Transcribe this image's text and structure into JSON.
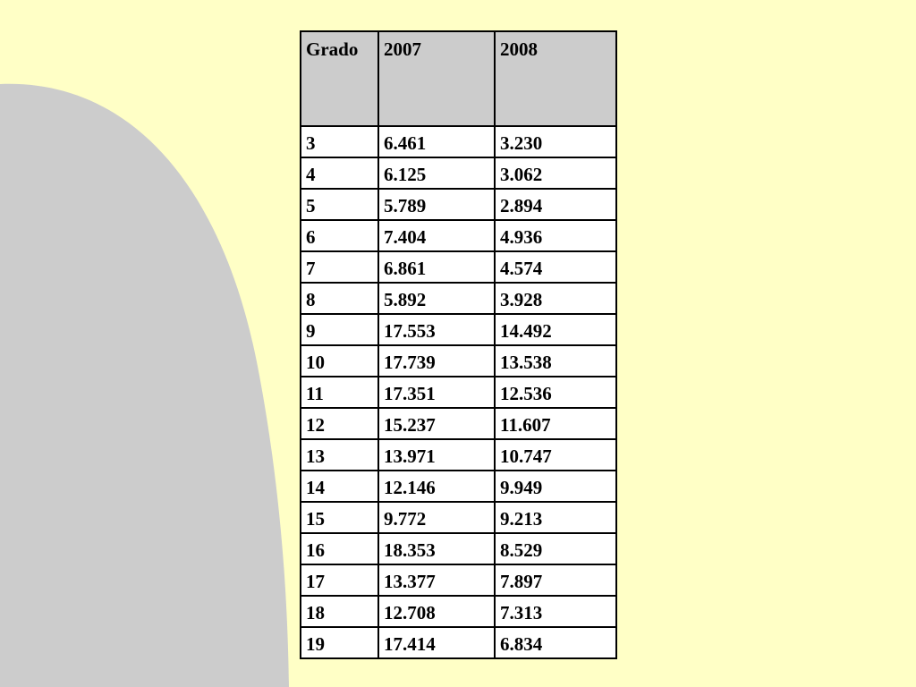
{
  "colors": {
    "background": "#ffffc6",
    "shape": "#cccccc",
    "header_fill": "#cccccc"
  },
  "table": {
    "headers": [
      "Grado",
      "2007",
      "2008"
    ],
    "rows": [
      [
        "3",
        "6.461",
        "3.230"
      ],
      [
        "4",
        "6.125",
        "3.062"
      ],
      [
        "5",
        "5.789",
        "2.894"
      ],
      [
        "6",
        "7.404",
        "4.936"
      ],
      [
        "7",
        "6.861",
        "4.574"
      ],
      [
        "8",
        "5.892",
        "3.928"
      ],
      [
        "9",
        "17.553",
        "14.492"
      ],
      [
        "10",
        "17.739",
        "13.538"
      ],
      [
        "11",
        "17.351",
        "12.536"
      ],
      [
        "12",
        "15.237",
        "11.607"
      ],
      [
        "13",
        "13.971",
        "10.747"
      ],
      [
        "14",
        "12.146",
        "9.949"
      ],
      [
        "15",
        "9.772",
        "9.213"
      ],
      [
        "16",
        "18.353",
        "8.529"
      ],
      [
        "17",
        "13.377",
        "7.897"
      ],
      [
        "18",
        "12.708",
        "7.313"
      ],
      [
        "19",
        "17.414",
        "6.834"
      ]
    ]
  }
}
